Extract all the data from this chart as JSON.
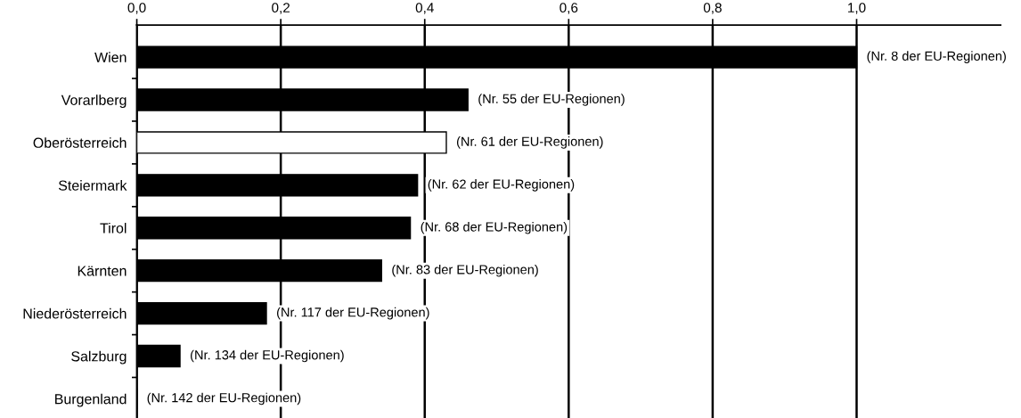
{
  "chart_data": {
    "type": "bar",
    "orientation": "horizontal",
    "categories": [
      "Wien",
      "Vorarlberg",
      "Oberösterreich",
      "Steiermark",
      "Tirol",
      "Kärnten",
      "Niederösterreich",
      "Salzburg",
      "Burgenland"
    ],
    "values": [
      1.0,
      0.46,
      0.43,
      0.39,
      0.38,
      0.34,
      0.18,
      0.06,
      0
    ],
    "colors": [
      "#000000",
      "#000000",
      "#ffffff",
      "#000000",
      "#000000",
      "#000000",
      "#000000",
      "#000000",
      "#000000"
    ],
    "annotations": [
      {
        "text": "(Nr. 8 der EU-Regionen)",
        "x": 1.0,
        "y": "Wien"
      },
      {
        "text": "(Nr. 55 der EU-Regionen)",
        "x": 0.46,
        "y": "Vorarlberg"
      },
      {
        "text": "(Nr. 61 der EU-Regionen)",
        "x": 0.43,
        "y": "Oberösterreich"
      },
      {
        "text": "(Nr. 62 der EU-Regionen)",
        "x": 0.39,
        "y": "Steiermark"
      },
      {
        "text": "(Nr. 68 der EU-Regionen)",
        "x": 0.38,
        "y": "Tirol"
      },
      {
        "text": "(Nr. 83 der EU-Regionen)",
        "x": 0.34,
        "y": "Kärnten"
      },
      {
        "text": "(Nr. 117 der EU-Regionen)",
        "x": 0.18,
        "y": "Niederösterreich"
      },
      {
        "text": "(Nr. 134 der EU-Regionen)",
        "x": 0.06,
        "y": "Salzburg"
      },
      {
        "text": "(Nr. 142 der EU-Regionen)",
        "x": 0,
        "y": "Burgenland"
      }
    ],
    "xlim": [
      0,
      1.2
    ],
    "xticks": [
      {
        "value": 0,
        "label": "0,0"
      },
      {
        "value": 0.2,
        "label": "0,2"
      },
      {
        "value": 0.4,
        "label": "0,4"
      },
      {
        "value": 0.6,
        "label": "0,6"
      },
      {
        "value": 0.8,
        "label": "0,8"
      },
      {
        "value": 1.0,
        "label": "1,0"
      }
    ],
    "grid": "x"
  }
}
